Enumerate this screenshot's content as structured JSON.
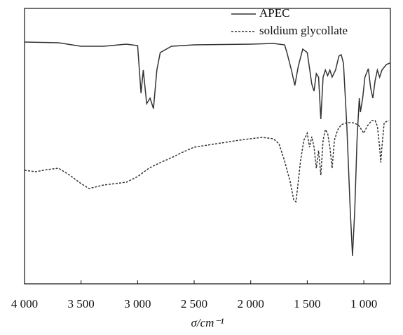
{
  "chart_data": {
    "type": "line",
    "xlabel": "σ/cm⁻¹",
    "xlim": [
      4000,
      765
    ],
    "xticks": [
      {
        "value": 4000,
        "label": "4 000"
      },
      {
        "value": 3500,
        "label": "3 500"
      },
      {
        "value": 3000,
        "label": "3 000"
      },
      {
        "value": 2500,
        "label": "2 500"
      },
      {
        "value": 2000,
        "label": "2 000"
      },
      {
        "value": 1500,
        "label": "1 500"
      },
      {
        "value": 1000,
        "label": "1 000"
      }
    ],
    "ylim": [
      0,
      393
    ],
    "legend": "top-right",
    "series": [
      {
        "name": "APEC",
        "color": "#333333",
        "dash": false,
        "x": [
          4000,
          3700,
          3500,
          3300,
          3100,
          3000,
          2970,
          2950,
          2920,
          2890,
          2860,
          2830,
          2800,
          2700,
          2500,
          2000,
          1800,
          1700,
          1680,
          1640,
          1610,
          1580,
          1540,
          1500,
          1460,
          1440,
          1420,
          1400,
          1380,
          1360,
          1340,
          1320,
          1300,
          1280,
          1250,
          1220,
          1200,
          1180,
          1150,
          1120,
          1100,
          1080,
          1060,
          1040,
          1030,
          1010,
          990,
          960,
          940,
          920,
          900,
          880,
          860,
          840,
          800,
          770
        ],
        "values": [
          345,
          344,
          339,
          339,
          342,
          340,
          272,
          305,
          257,
          265,
          250,
          305,
          330,
          339,
          341,
          342,
          343,
          341,
          330,
          305,
          283,
          310,
          335,
          330,
          285,
          275,
          300,
          295,
          235,
          295,
          305,
          297,
          305,
          295,
          305,
          325,
          327,
          315,
          225,
          105,
          40,
          105,
          205,
          265,
          245,
          265,
          295,
          307,
          280,
          265,
          290,
          305,
          295,
          305,
          313,
          315
        ]
      },
      {
        "name": "soldium glycollate",
        "color": "#333333",
        "dash": true,
        "x": [
          4000,
          3900,
          3800,
          3700,
          3600,
          3500,
          3430,
          3300,
          3200,
          3100,
          3000,
          2900,
          2800,
          2700,
          2600,
          2500,
          2300,
          2100,
          1900,
          1800,
          1750,
          1700,
          1650,
          1620,
          1600,
          1580,
          1560,
          1530,
          1500,
          1480,
          1460,
          1440,
          1420,
          1400,
          1380,
          1360,
          1340,
          1320,
          1300,
          1280,
          1260,
          1230,
          1200,
          1150,
          1100,
          1050,
          1000,
          970,
          930,
          900,
          880,
          860,
          850,
          840,
          820,
          780
        ],
        "values": [
          162,
          160,
          163,
          165,
          155,
          143,
          136,
          141,
          143,
          145,
          153,
          165,
          173,
          180,
          188,
          195,
          200,
          205,
          209,
          207,
          200,
          175,
          145,
          120,
          117,
          145,
          175,
          205,
          215,
          195,
          210,
          195,
          165,
          190,
          155,
          205,
          220,
          215,
          195,
          165,
          205,
          220,
          227,
          230,
          230,
          227,
          215,
          225,
          233,
          233,
          225,
          195,
          173,
          195,
          230,
          233
        ]
      }
    ]
  }
}
